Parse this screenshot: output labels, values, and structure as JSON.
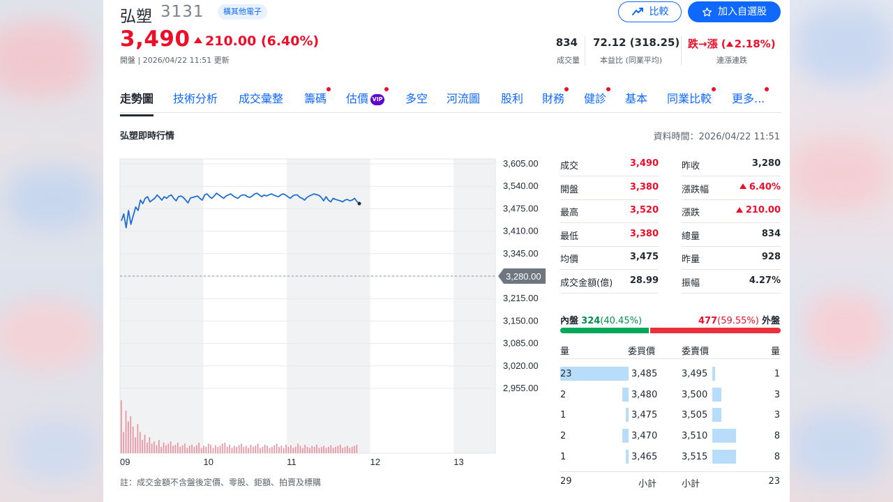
{
  "header": {
    "name": "弘塑",
    "code": "3131",
    "category": "橫其他電子",
    "compare_label": "比較",
    "add_watch_label": "加入自選股",
    "price": "3,490",
    "change": "210.00 (6.40%)",
    "meta": "開盤 | 2026/04/22 11:51 更新",
    "stats": {
      "volume": "834",
      "volume_label": "成交量",
      "pe": "72.12 (318.25)",
      "pe_label": "本益比 (同業平均)",
      "streak": "跌→漲 (",
      "streak_pct": "2.18%)",
      "streak_label": "連漲連跌"
    }
  },
  "tabs": [
    {
      "label": "走勢圖",
      "active": true,
      "dot": false
    },
    {
      "label": "技術分析",
      "dot": false
    },
    {
      "label": "成交彙整",
      "dot": false
    },
    {
      "label": "籌碼",
      "dot": true
    },
    {
      "label": "估價",
      "dot": true,
      "vip": "VIP"
    },
    {
      "label": "多空",
      "dot": false
    },
    {
      "label": "河流圖",
      "dot": false
    },
    {
      "label": "股利",
      "dot": false
    },
    {
      "label": "財務",
      "dot": true
    },
    {
      "label": "健診",
      "dot": true
    },
    {
      "label": "基本",
      "dot": false
    },
    {
      "label": "同業比較",
      "dot": true
    },
    {
      "label": "更多...",
      "dot": true
    }
  ],
  "section": {
    "title": "弘塑即時行情",
    "data_time": "資料時間：2026/04/22 11:51"
  },
  "chart_data": {
    "type": "line",
    "x_ticks": [
      "09",
      "10",
      "11",
      "12",
      "13"
    ],
    "y_ticks": [
      "3,605.00",
      "3,540.00",
      "3,475.00",
      "3,410.00",
      "3,345.00",
      "3,280.00",
      "3,215.00",
      "3,150.00",
      "3,085.00",
      "3,020.00",
      "2,955.00"
    ],
    "ylim": [
      2955,
      3605
    ],
    "reference": 3280,
    "reference_label": "3,280.00",
    "line_color": "#1e6fd1",
    "volume_color": "#eb8c9a",
    "price_series": [
      3440,
      3460,
      3420,
      3470,
      3430,
      3455,
      3480,
      3470,
      3500,
      3490,
      3505,
      3510,
      3495,
      3500,
      3505,
      3515,
      3508,
      3500,
      3510,
      3505,
      3512,
      3515,
      3505,
      3498,
      3510,
      3512,
      3508,
      3500,
      3492,
      3506,
      3508,
      3510,
      3512,
      3505,
      3500,
      3515,
      3518,
      3510,
      3505,
      3512,
      3520,
      3515,
      3510,
      3505,
      3512,
      3515,
      3518,
      3512,
      3508,
      3505,
      3512,
      3515,
      3515,
      3510,
      3508,
      3512,
      3518,
      3520,
      3515,
      3510,
      3515,
      3512,
      3515,
      3518,
      3515,
      3512,
      3510,
      3515,
      3518,
      3515,
      3510,
      3505,
      3512,
      3515,
      3515,
      3508,
      3505,
      3500,
      3508,
      3512,
      3515,
      3518,
      3516,
      3514,
      3508,
      3498,
      3510,
      3500,
      3495,
      3505,
      3502,
      3500,
      3498,
      3495,
      3500,
      3502,
      3498,
      3500,
      3505,
      3496,
      3490
    ],
    "volume_series": [
      100,
      40,
      80,
      60,
      70,
      50,
      30,
      55,
      40,
      25,
      35,
      20,
      30,
      18,
      22,
      15,
      25,
      12,
      20,
      15,
      18,
      22,
      14,
      16,
      20,
      12,
      15,
      18,
      10,
      14,
      16,
      12,
      15,
      20,
      10,
      14,
      12,
      18,
      16,
      10,
      15,
      12,
      14,
      18,
      20,
      12,
      16,
      10,
      14,
      12,
      15,
      18,
      12,
      14,
      10,
      16,
      12,
      14,
      18,
      10,
      12,
      16,
      14,
      10,
      12,
      15,
      18,
      12,
      14,
      10,
      16,
      12,
      15,
      10,
      12,
      18,
      14,
      10,
      16,
      12,
      10,
      14,
      12,
      16,
      10,
      12,
      14,
      10,
      12,
      15,
      10,
      12,
      14,
      16,
      10,
      12,
      14,
      10,
      12,
      14,
      16
    ]
  },
  "quote_left": [
    {
      "label": "成交",
      "value": "3,490",
      "color": "red"
    },
    {
      "label": "開盤",
      "value": "3,380",
      "color": "red"
    },
    {
      "label": "最高",
      "value": "3,520",
      "color": "red"
    },
    {
      "label": "最低",
      "value": "3,380",
      "color": "red"
    },
    {
      "label": "均價",
      "value": "3,475",
      "color": "black"
    },
    {
      "label": "成交金額(億)",
      "value": "28.99",
      "color": "black"
    }
  ],
  "quote_right": [
    {
      "label": "昨收",
      "value": "3,280",
      "color": "black",
      "up": false
    },
    {
      "label": "漲跌幅",
      "value": "6.40%",
      "color": "red",
      "up": true
    },
    {
      "label": "漲跌",
      "value": "210.00",
      "color": "red",
      "up": true
    },
    {
      "label": "總量",
      "value": "834",
      "color": "black",
      "up": false
    },
    {
      "label": "昨量",
      "value": "928",
      "color": "black",
      "up": false
    },
    {
      "label": "振幅",
      "value": "4.27%",
      "color": "black",
      "up": false
    }
  ],
  "inout": {
    "in_label": "內盤",
    "in_value": "324",
    "in_pct": "(40.45%)",
    "out_value": "477",
    "out_pct": "(59.55%)",
    "out_label": "外盤",
    "in_fraction": 0.4045
  },
  "orderbook": {
    "headers": {
      "bid_qty": "量",
      "bid_price": "委買價",
      "ask_price": "委賣價",
      "ask_qty": "量"
    },
    "rows": [
      {
        "bid_qty": "23",
        "bid_price": "3,485",
        "ask_price": "3,495",
        "ask_qty": "1",
        "bid_n": 23,
        "ask_n": 1
      },
      {
        "bid_qty": "2",
        "bid_price": "3,480",
        "ask_price": "3,500",
        "ask_qty": "3",
        "bid_n": 2,
        "ask_n": 3
      },
      {
        "bid_qty": "1",
        "bid_price": "3,475",
        "ask_price": "3,505",
        "ask_qty": "3",
        "bid_n": 1,
        "ask_n": 3
      },
      {
        "bid_qty": "2",
        "bid_price": "3,470",
        "ask_price": "3,510",
        "ask_qty": "8",
        "bid_n": 2,
        "ask_n": 8
      },
      {
        "bid_qty": "1",
        "bid_price": "3,465",
        "ask_price": "3,515",
        "ask_qty": "8",
        "bid_n": 1,
        "ask_n": 8
      }
    ],
    "footer": {
      "bid_total": "29",
      "bid_label": "小計",
      "ask_label": "小計",
      "ask_total": "23"
    }
  },
  "note": "註：成交金額不含盤後定價、零股、鉅額、拍賣及標購"
}
